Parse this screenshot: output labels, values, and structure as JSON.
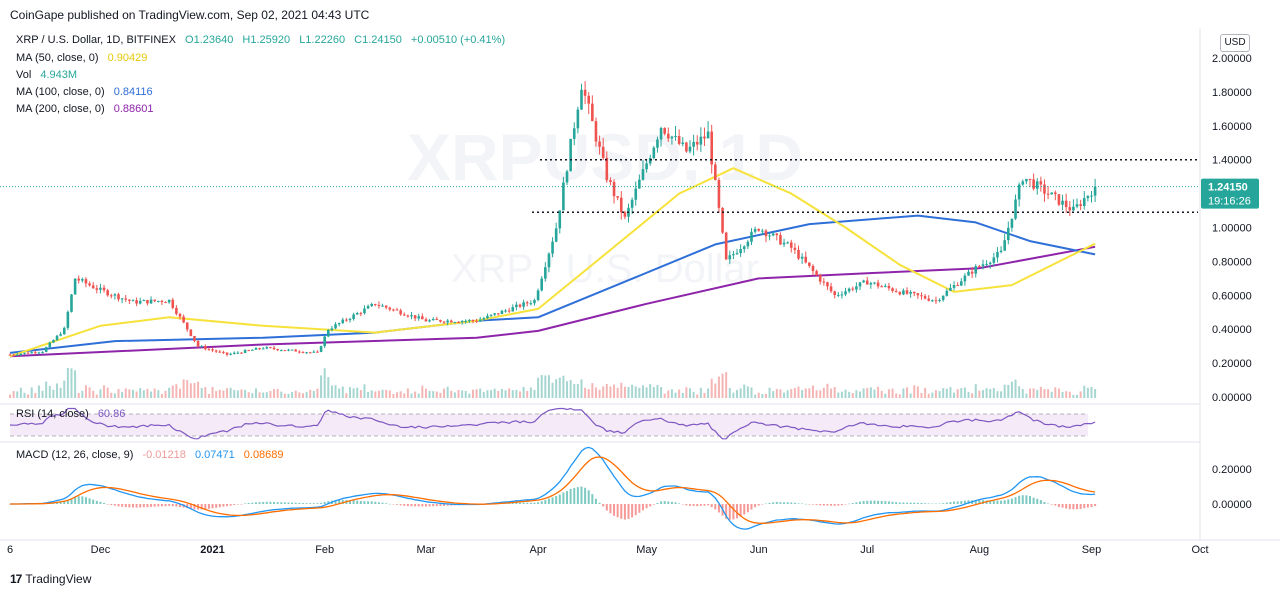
{
  "header": {
    "published": "CoinGape published on TradingView.com, Sep 02, 2021 04:43 UTC"
  },
  "legend": {
    "symbol": "XRP / U.S. Dollar, 1D, BITFINEX",
    "open": "O1.23640",
    "high": "H1.25920",
    "low": "L1.22260",
    "close": "C1.24150",
    "change": "+0.00510 (+0.41%)",
    "ma50_label": "MA (50, close, 0)",
    "ma50_value": "0.90429",
    "vol_label": "Vol",
    "vol_value": "4.943M",
    "ma100_label": "MA (100, close, 0)",
    "ma100_value": "0.84116",
    "ma200_label": "MA (200, close, 0)",
    "ma200_value": "0.88601"
  },
  "rsi": {
    "label": "RSI (14, close)",
    "value": "60.86"
  },
  "macd": {
    "label": "MACD (12, 26, close, 9)",
    "hist": "-0.01218",
    "macd": "0.07471",
    "signal": "0.08689"
  },
  "price_tag": {
    "price": "1.24150",
    "countdown": "19:16:26"
  },
  "currency": "USD",
  "watermark": {
    "big": "XRPUSD, 1D",
    "small": "XRP / U.S. Dollar"
  },
  "footer": {
    "brand": "TradingView"
  },
  "colors": {
    "up": "#26a69a",
    "down": "#ef5350",
    "ma50": "#f7e23b",
    "ma100": "#2f6fd8",
    "ma200": "#8e24aa",
    "rsi": "#7e57c2",
    "macd": "#2196f3",
    "signal": "#ff6d00",
    "tag": "#26a69a"
  },
  "chart_data": {
    "type": "candlestick",
    "x_ticks": [
      "6",
      "Dec",
      "2021",
      "Feb",
      "Mar",
      "Apr",
      "May",
      "Jun",
      "Jul",
      "Aug",
      "Sep",
      "Oct"
    ],
    "y_ticks": [
      "2.00000",
      "1.80000",
      "1.60000",
      "1.40000",
      "1.20000",
      "1.00000",
      "0.80000",
      "0.60000",
      "0.40000",
      "0.20000",
      "0.00000"
    ],
    "y_range": [
      0.0,
      2.0
    ],
    "resistance_levels": [
      1.4,
      1.09
    ],
    "current_price": 1.2415,
    "price_points": [
      {
        "date": "2020-11-06",
        "close": 0.25
      },
      {
        "date": "2020-11-15",
        "close": 0.27
      },
      {
        "date": "2020-11-21",
        "close": 0.4
      },
      {
        "date": "2020-11-24",
        "close": 0.7
      },
      {
        "date": "2020-12-01",
        "close": 0.63
      },
      {
        "date": "2020-12-10",
        "close": 0.56
      },
      {
        "date": "2020-12-20",
        "close": 0.57
      },
      {
        "date": "2020-12-28",
        "close": 0.3
      },
      {
        "date": "2021-01-05",
        "close": 0.25
      },
      {
        "date": "2021-01-15",
        "close": 0.29
      },
      {
        "date": "2021-01-30",
        "close": 0.26
      },
      {
        "date": "2021-02-02",
        "close": 0.4
      },
      {
        "date": "2021-02-15",
        "close": 0.55
      },
      {
        "date": "2021-03-01",
        "close": 0.45
      },
      {
        "date": "2021-03-15",
        "close": 0.45
      },
      {
        "date": "2021-03-31",
        "close": 0.57
      },
      {
        "date": "2021-04-06",
        "close": 1.0
      },
      {
        "date": "2021-04-13",
        "close": 1.85
      },
      {
        "date": "2021-04-20",
        "close": 1.3
      },
      {
        "date": "2021-04-25",
        "close": 1.05
      },
      {
        "date": "2021-05-05",
        "close": 1.6
      },
      {
        "date": "2021-05-12",
        "close": 1.45
      },
      {
        "date": "2021-05-18",
        "close": 1.55
      },
      {
        "date": "2021-05-23",
        "close": 0.8
      },
      {
        "date": "2021-06-01",
        "close": 1.0
      },
      {
        "date": "2021-06-10",
        "close": 0.88
      },
      {
        "date": "2021-06-22",
        "close": 0.6
      },
      {
        "date": "2021-07-01",
        "close": 0.68
      },
      {
        "date": "2021-07-10",
        "close": 0.62
      },
      {
        "date": "2021-07-20",
        "close": 0.57
      },
      {
        "date": "2021-07-31",
        "close": 0.76
      },
      {
        "date": "2021-08-07",
        "close": 0.85
      },
      {
        "date": "2021-08-13",
        "close": 1.3
      },
      {
        "date": "2021-08-20",
        "close": 1.2
      },
      {
        "date": "2021-08-27",
        "close": 1.1
      },
      {
        "date": "2021-09-02",
        "close": 1.2415
      }
    ],
    "ma50": [
      {
        "date": "2020-11-06",
        "v": 0.24
      },
      {
        "date": "2020-12-01",
        "v": 0.42
      },
      {
        "date": "2020-12-20",
        "v": 0.47
      },
      {
        "date": "2021-01-15",
        "v": 0.42
      },
      {
        "date": "2021-02-15",
        "v": 0.38
      },
      {
        "date": "2021-03-15",
        "v": 0.45
      },
      {
        "date": "2021-04-01",
        "v": 0.52
      },
      {
        "date": "2021-04-20",
        "v": 0.85
      },
      {
        "date": "2021-05-10",
        "v": 1.2
      },
      {
        "date": "2021-05-25",
        "v": 1.35
      },
      {
        "date": "2021-06-10",
        "v": 1.2
      },
      {
        "date": "2021-06-25",
        "v": 1.0
      },
      {
        "date": "2021-07-10",
        "v": 0.78
      },
      {
        "date": "2021-07-25",
        "v": 0.62
      },
      {
        "date": "2021-08-10",
        "v": 0.66
      },
      {
        "date": "2021-08-25",
        "v": 0.82
      },
      {
        "date": "2021-09-02",
        "v": 0.90429
      }
    ],
    "ma100": [
      {
        "date": "2020-11-06",
        "v": 0.26
      },
      {
        "date": "2020-12-05",
        "v": 0.33
      },
      {
        "date": "2021-01-15",
        "v": 0.35
      },
      {
        "date": "2021-02-15",
        "v": 0.38
      },
      {
        "date": "2021-03-15",
        "v": 0.45
      },
      {
        "date": "2021-04-01",
        "v": 0.47
      },
      {
        "date": "2021-04-25",
        "v": 0.68
      },
      {
        "date": "2021-05-20",
        "v": 0.9
      },
      {
        "date": "2021-06-15",
        "v": 1.02
      },
      {
        "date": "2021-07-15",
        "v": 1.07
      },
      {
        "date": "2021-07-31",
        "v": 1.03
      },
      {
        "date": "2021-08-15",
        "v": 0.92
      },
      {
        "date": "2021-09-02",
        "v": 0.84116
      }
    ],
    "ma200": [
      {
        "date": "2020-11-06",
        "v": 0.24
      },
      {
        "date": "2021-01-15",
        "v": 0.31
      },
      {
        "date": "2021-03-15",
        "v": 0.35
      },
      {
        "date": "2021-04-01",
        "v": 0.39
      },
      {
        "date": "2021-05-01",
        "v": 0.55
      },
      {
        "date": "2021-06-01",
        "v": 0.7
      },
      {
        "date": "2021-07-01",
        "v": 0.73
      },
      {
        "date": "2021-08-01",
        "v": 0.76
      },
      {
        "date": "2021-09-02",
        "v": 0.88601
      }
    ]
  }
}
